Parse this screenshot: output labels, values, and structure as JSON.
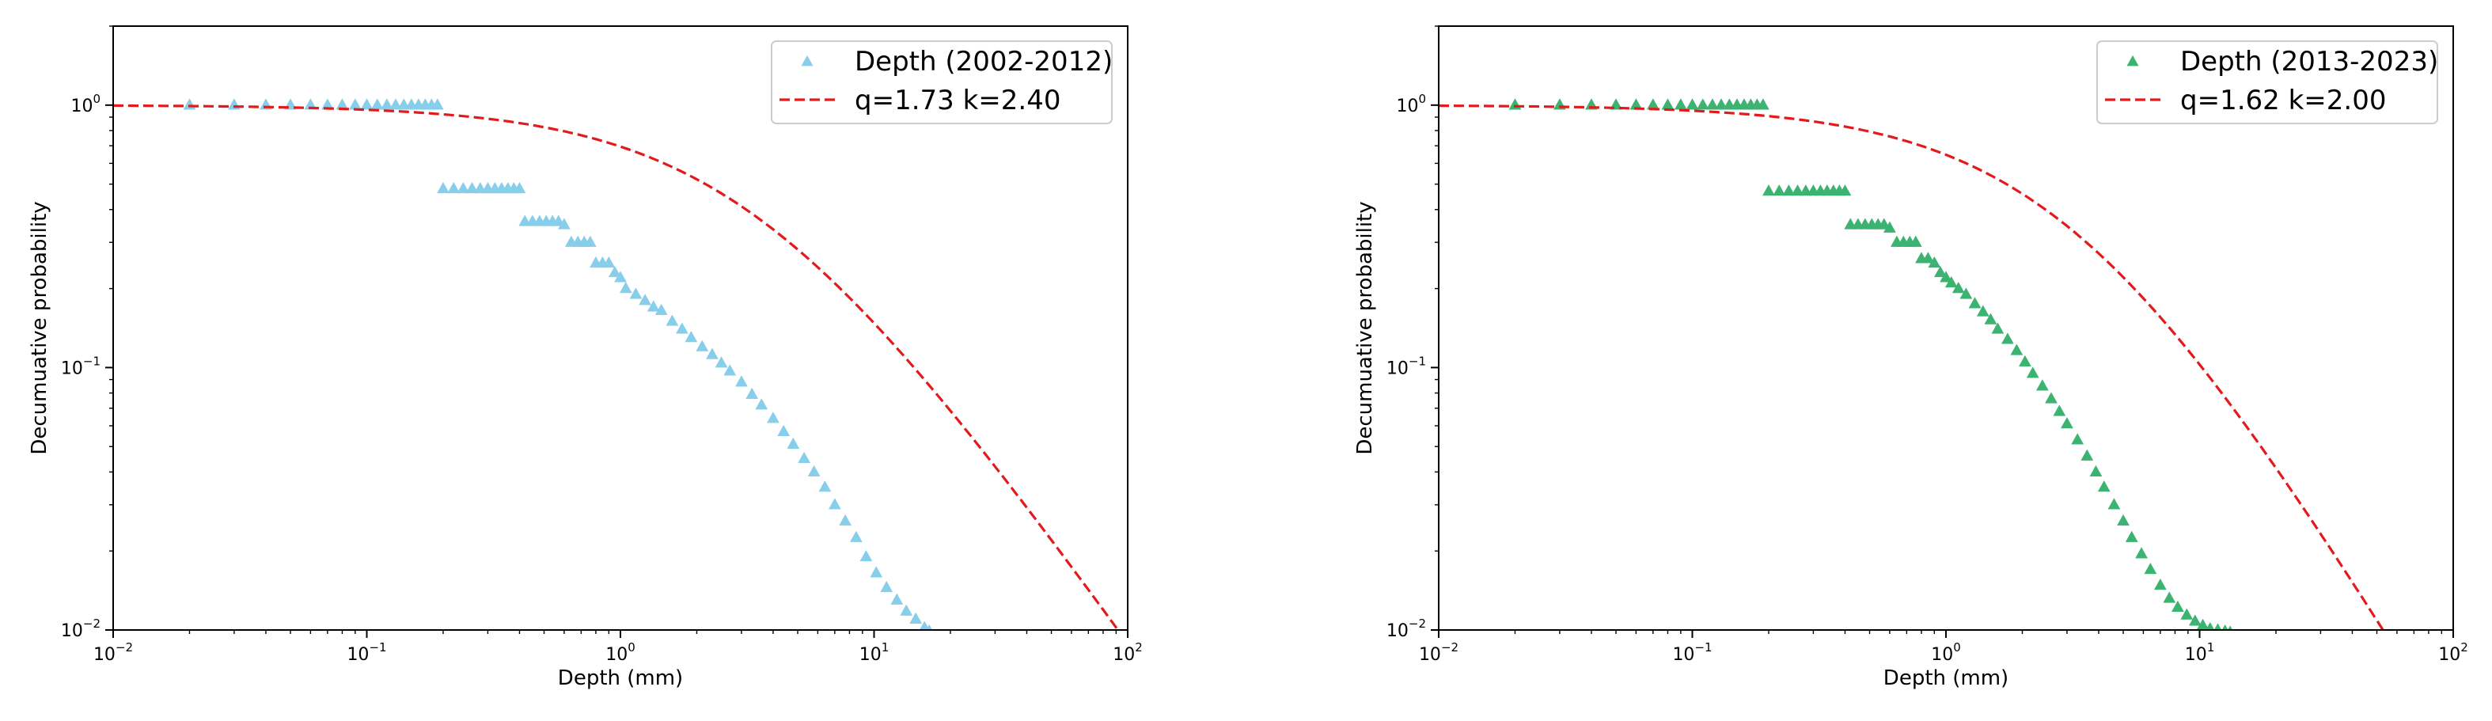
{
  "chart_data": [
    {
      "type": "scatter",
      "xlabel": "Depth (mm)",
      "ylabel": "Decumuative probability",
      "x_scale": "log",
      "y_scale": "log",
      "xlim": [
        0.01,
        100
      ],
      "ylim": [
        0.01,
        2.0
      ],
      "x_ticks": [
        {
          "base": "10",
          "exp": "−2"
        },
        {
          "base": "10",
          "exp": "−1"
        },
        {
          "base": "10",
          "exp": "0"
        },
        {
          "base": "10",
          "exp": "1"
        },
        {
          "base": "10",
          "exp": "2"
        }
      ],
      "y_ticks": [
        {
          "base": "10",
          "exp": "−2"
        },
        {
          "base": "10",
          "exp": "−1"
        },
        {
          "base": "10",
          "exp": "0"
        }
      ],
      "legend_position": "upper right",
      "grid": false,
      "series": [
        {
          "name": "Depth (2002-2012)",
          "kind": "scatter",
          "marker": "triangle",
          "color": "#87ceeb",
          "x": [
            0.02,
            0.03,
            0.04,
            0.05,
            0.06,
            0.07,
            0.08,
            0.09,
            0.1,
            0.11,
            0.12,
            0.13,
            0.14,
            0.15,
            0.16,
            0.17,
            0.18,
            0.19,
            0.2,
            0.22,
            0.24,
            0.26,
            0.28,
            0.3,
            0.32,
            0.34,
            0.36,
            0.38,
            0.4,
            0.42,
            0.45,
            0.48,
            0.51,
            0.54,
            0.57,
            0.6,
            0.64,
            0.68,
            0.72,
            0.76,
            0.8,
            0.85,
            0.9,
            0.95,
            1.0,
            1.05,
            1.15,
            1.25,
            1.35,
            1.45,
            1.6,
            1.75,
            1.9,
            2.1,
            2.3,
            2.5,
            2.7,
            3.0,
            3.3,
            3.6,
            4.0,
            4.4,
            4.8,
            5.3,
            5.8,
            6.4,
            7.0,
            7.7,
            8.5,
            9.3,
            10.2,
            11.2,
            12.3,
            13.4,
            14.6,
            15.8,
            16.5
          ],
          "y": [
            1.0,
            1.0,
            1.0,
            1.0,
            1.0,
            1.0,
            1.0,
            1.0,
            1.0,
            1.0,
            1.0,
            1.0,
            1.0,
            1.0,
            1.0,
            1.0,
            1.0,
            1.0,
            0.48,
            0.48,
            0.48,
            0.48,
            0.48,
            0.48,
            0.48,
            0.48,
            0.48,
            0.48,
            0.48,
            0.36,
            0.36,
            0.36,
            0.36,
            0.36,
            0.36,
            0.35,
            0.3,
            0.3,
            0.3,
            0.3,
            0.25,
            0.25,
            0.25,
            0.23,
            0.22,
            0.2,
            0.19,
            0.18,
            0.17,
            0.165,
            0.15,
            0.14,
            0.13,
            0.12,
            0.112,
            0.104,
            0.097,
            0.088,
            0.079,
            0.072,
            0.064,
            0.057,
            0.051,
            0.045,
            0.04,
            0.035,
            0.03,
            0.026,
            0.0225,
            0.019,
            0.0165,
            0.0145,
            0.013,
            0.0118,
            0.011,
            0.0102,
            0.0099
          ]
        },
        {
          "name": "q=1.73 k=2.40",
          "kind": "line",
          "style": "dashed",
          "color": "#e31a1c",
          "q": 1.73,
          "k": 2.4,
          "x_range": [
            0.01,
            100
          ]
        }
      ]
    },
    {
      "type": "scatter",
      "xlabel": "Depth (mm)",
      "ylabel": "Decumuative probability",
      "x_scale": "log",
      "y_scale": "log",
      "xlim": [
        0.01,
        100
      ],
      "ylim": [
        0.01,
        2.0
      ],
      "x_ticks": [
        {
          "base": "10",
          "exp": "−2"
        },
        {
          "base": "10",
          "exp": "−1"
        },
        {
          "base": "10",
          "exp": "0"
        },
        {
          "base": "10",
          "exp": "1"
        },
        {
          "base": "10",
          "exp": "2"
        }
      ],
      "y_ticks": [
        {
          "base": "10",
          "exp": "−2"
        },
        {
          "base": "10",
          "exp": "−1"
        },
        {
          "base": "10",
          "exp": "0"
        }
      ],
      "legend_position": "upper right",
      "grid": false,
      "series": [
        {
          "name": "Depth (2013-2023)",
          "kind": "scatter",
          "marker": "triangle",
          "color": "#3cb371",
          "x": [
            0.02,
            0.03,
            0.04,
            0.05,
            0.06,
            0.07,
            0.08,
            0.09,
            0.1,
            0.11,
            0.12,
            0.13,
            0.14,
            0.15,
            0.16,
            0.17,
            0.18,
            0.19,
            0.2,
            0.22,
            0.24,
            0.26,
            0.28,
            0.3,
            0.32,
            0.34,
            0.36,
            0.38,
            0.4,
            0.42,
            0.45,
            0.48,
            0.51,
            0.54,
            0.57,
            0.6,
            0.64,
            0.68,
            0.72,
            0.76,
            0.8,
            0.85,
            0.9,
            0.95,
            1.0,
            1.05,
            1.12,
            1.2,
            1.3,
            1.4,
            1.5,
            1.6,
            1.75,
            1.9,
            2.05,
            2.2,
            2.4,
            2.6,
            2.8,
            3.0,
            3.3,
            3.6,
            3.9,
            4.2,
            4.6,
            5.0,
            5.4,
            5.9,
            6.4,
            7.0,
            7.6,
            8.2,
            8.9,
            9.6,
            10.3,
            11.0,
            11.8,
            12.6,
            13.2
          ],
          "y": [
            1.0,
            1.0,
            1.0,
            1.0,
            1.0,
            1.0,
            1.0,
            1.0,
            1.0,
            1.0,
            1.0,
            1.0,
            1.0,
            1.0,
            1.0,
            1.0,
            1.0,
            1.0,
            0.47,
            0.47,
            0.47,
            0.47,
            0.47,
            0.47,
            0.47,
            0.47,
            0.47,
            0.47,
            0.47,
            0.35,
            0.35,
            0.35,
            0.35,
            0.35,
            0.35,
            0.34,
            0.3,
            0.3,
            0.3,
            0.3,
            0.26,
            0.26,
            0.25,
            0.23,
            0.22,
            0.21,
            0.2,
            0.19,
            0.175,
            0.163,
            0.152,
            0.14,
            0.128,
            0.116,
            0.105,
            0.095,
            0.085,
            0.076,
            0.068,
            0.061,
            0.053,
            0.046,
            0.04,
            0.035,
            0.03,
            0.026,
            0.0225,
            0.0195,
            0.017,
            0.0148,
            0.0132,
            0.0122,
            0.0114,
            0.0108,
            0.0104,
            0.0101,
            0.01,
            0.0099,
            0.0098
          ]
        },
        {
          "name": "q=1.62 k=2.00",
          "kind": "line",
          "style": "dashed",
          "color": "#e31a1c",
          "q": 1.62,
          "k": 2.0,
          "x_range": [
            0.01,
            100
          ]
        }
      ]
    }
  ]
}
